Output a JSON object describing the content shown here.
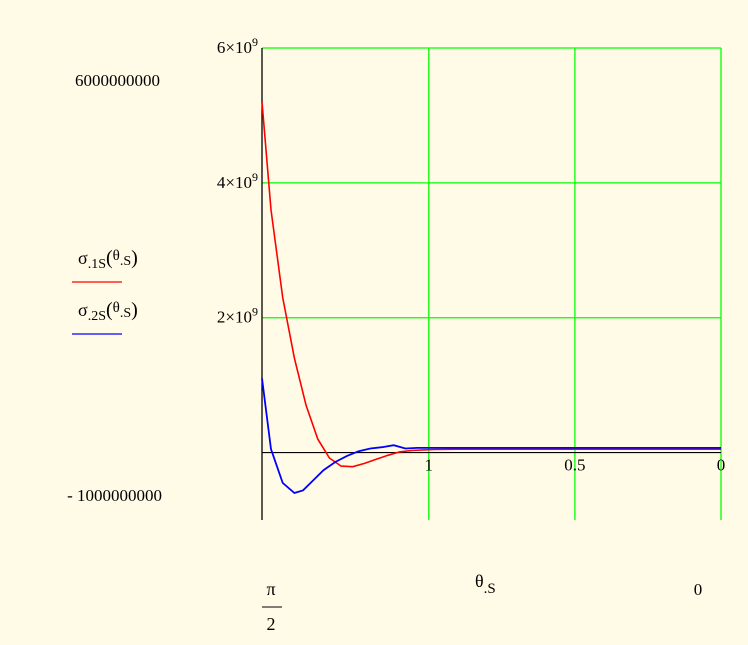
{
  "chart_data": {
    "type": "line",
    "xlabel": "θ.S",
    "xlabel_main": "θ",
    "xlabel_sub": "S",
    "x_range_labels": {
      "left": "π/2",
      "left_num": "π",
      "left_den": "2",
      "right": "0"
    },
    "xlim": [
      1.5708,
      0
    ],
    "ylim": [
      -1000000000,
      6000000000
    ],
    "y_range_labels": {
      "top": "6000000000",
      "bottom": "- 1000000000"
    },
    "x_ticks": [
      {
        "value": 1,
        "label": "1"
      },
      {
        "value": 0.5,
        "label": "0.5"
      },
      {
        "value": 0,
        "label": "0"
      }
    ],
    "y_ticks": [
      {
        "value": 6000000000,
        "label": "6×10",
        "exp": "9"
      },
      {
        "value": 4000000000,
        "label": "4×10",
        "exp": "9"
      },
      {
        "value": 2000000000,
        "label": "2×10",
        "exp": "9"
      }
    ],
    "grid": true,
    "series": [
      {
        "name": "σ.1S(θ.S)",
        "name_parts": {
          "sym": "σ",
          "sub": ".1S",
          "argsym": "θ",
          "argsub": ".S"
        },
        "color": "#ff0000",
        "x": [
          1.5708,
          1.54,
          1.5,
          1.46,
          1.42,
          1.38,
          1.34,
          1.3,
          1.26,
          1.22,
          1.18,
          1.14,
          1.1,
          1.06,
          1.02,
          0.98,
          0.9,
          0.8,
          0.6,
          0.4,
          0.2,
          0.0
        ],
        "y": [
          5200000000,
          3600000000,
          2300000000,
          1400000000,
          700000000,
          200000000,
          -80000000,
          -200000000,
          -210000000,
          -160000000,
          -100000000,
          -40000000,
          10000000,
          30000000,
          40000000,
          45000000,
          50000000,
          50000000,
          50000000,
          50000000,
          50000000,
          50000000
        ]
      },
      {
        "name": "σ.2S(θ.S)",
        "name_parts": {
          "sym": "σ",
          "sub": ".2S",
          "argsym": "θ",
          "argsub": ".S"
        },
        "color": "#0000ff",
        "x": [
          1.5708,
          1.54,
          1.5,
          1.46,
          1.43,
          1.4,
          1.36,
          1.32,
          1.28,
          1.24,
          1.2,
          1.16,
          1.12,
          1.08,
          1.04,
          1.0,
          0.9,
          0.8,
          0.6,
          0.4,
          0.2,
          0.0
        ],
        "y": [
          1100000000,
          50000000,
          -450000000,
          -600000000,
          -560000000,
          -430000000,
          -260000000,
          -140000000,
          -50000000,
          20000000,
          60000000,
          80000000,
          110000000,
          60000000,
          70000000,
          70000000,
          70000000,
          70000000,
          70000000,
          70000000,
          70000000,
          70000000
        ]
      }
    ]
  }
}
